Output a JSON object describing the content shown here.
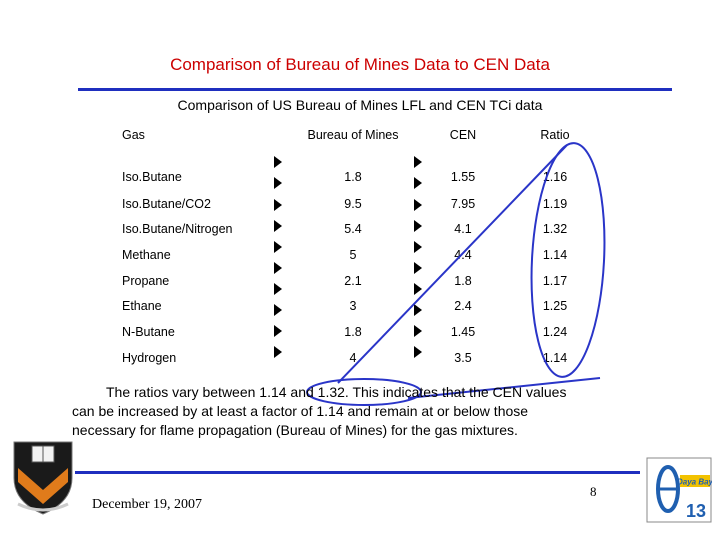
{
  "slide": {
    "title": "Comparison of Bureau of Mines Data to CEN Data",
    "caption": "Comparison of US Bureau of Mines LFL and CEN TCi data"
  },
  "table": {
    "headers": [
      "Gas",
      "Bureau of Mines",
      "CEN",
      "Ratio"
    ],
    "rows": [
      {
        "gas": "Iso.Butane",
        "bom": "1.8",
        "cen": "1.55",
        "ratio": "1.16"
      },
      {
        "gas": "Iso.Butane/CO2",
        "bom": "9.5",
        "cen": "7.95",
        "ratio": "1.19"
      },
      {
        "gas": "Iso.Butane/Nitrogen",
        "bom": "5.4",
        "cen": "4.1",
        "ratio": "1.32"
      },
      {
        "gas": "Methane",
        "bom": "5",
        "cen": "4.4",
        "ratio": "1.14"
      },
      {
        "gas": "Propane",
        "bom": "2.1",
        "cen": "1.8",
        "ratio": "1.17"
      },
      {
        "gas": "Ethane",
        "bom": "3",
        "cen": "2.4",
        "ratio": "1.25"
      },
      {
        "gas": "N-Butane",
        "bom": "1.8",
        "cen": "1.45",
        "ratio": "1.24"
      },
      {
        "gas": "Hydrogen",
        "bom": "4",
        "cen": "3.5",
        "ratio": "1.14"
      }
    ]
  },
  "body": {
    "line1": "The ratios vary between 1.14 and 1.32. This indicates that the CEN values",
    "line2": "can be increased by at least a factor of 1.14 and remain at or below those",
    "line3": "necessary for flame propagation (Bureau of Mines) for the gas mixtures."
  },
  "footer": {
    "date": "December 19, 2007",
    "page": "8",
    "logo_right_text": "Daya Bay",
    "logo_right_number": "13"
  },
  "colors": {
    "title": "#cc0000",
    "rule": "#1f2fbf",
    "annotation": "#2a35c8",
    "shield_orange": "#e07b1b"
  },
  "icons": {
    "left_logo": "princeton-shield-icon",
    "right_logo": "daya-bay-logo-icon"
  }
}
